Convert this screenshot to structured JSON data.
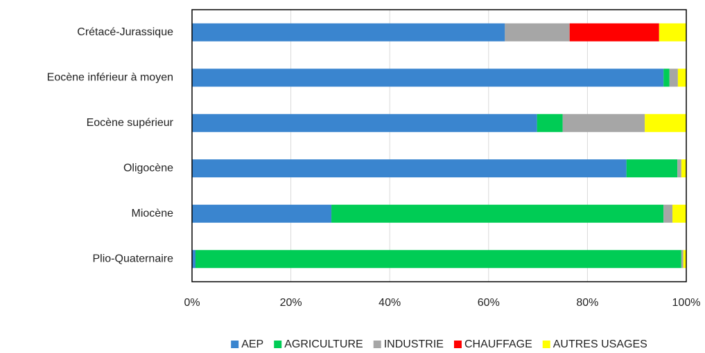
{
  "chart_data": {
    "type": "bar",
    "orientation": "horizontal",
    "stacked": true,
    "categories": [
      "Crétacé-Jurassique",
      "Eocène inférieur à moyen",
      "Eocène supérieur",
      "Oligocène",
      "Miocène",
      "Plio-Quaternaire"
    ],
    "series": [
      {
        "name": "AEP",
        "color": "#3a85cf",
        "values": [
          63.3,
          95.4,
          69.8,
          87.9,
          28.2,
          0.7
        ]
      },
      {
        "name": "AGRICULTURE",
        "color": "#00cc55",
        "values": [
          0,
          1.2,
          5.2,
          10.3,
          67.2,
          98.3
        ]
      },
      {
        "name": "INDUSTRIE",
        "color": "#a6a6a6",
        "values": [
          13.1,
          1.7,
          16.6,
          0.8,
          1.8,
          0.4
        ]
      },
      {
        "name": "CHAUFFAGE",
        "color": "#ff0000",
        "values": [
          18.1,
          0,
          0,
          0,
          0,
          0
        ]
      },
      {
        "name": "AUTRES USAGES",
        "color": "#ffff00",
        "values": [
          5.5,
          1.7,
          8.4,
          1.0,
          2.8,
          0.6
        ]
      }
    ],
    "xlim": [
      0,
      100
    ],
    "xticks": [
      {
        "value": 0,
        "label": "0%"
      },
      {
        "value": 20,
        "label": "20%"
      },
      {
        "value": 40,
        "label": "40%"
      },
      {
        "value": 60,
        "label": "60%"
      },
      {
        "value": 80,
        "label": "80%"
      },
      {
        "value": 100,
        "label": "100%"
      }
    ],
    "grid": true,
    "legend": "bottom"
  }
}
